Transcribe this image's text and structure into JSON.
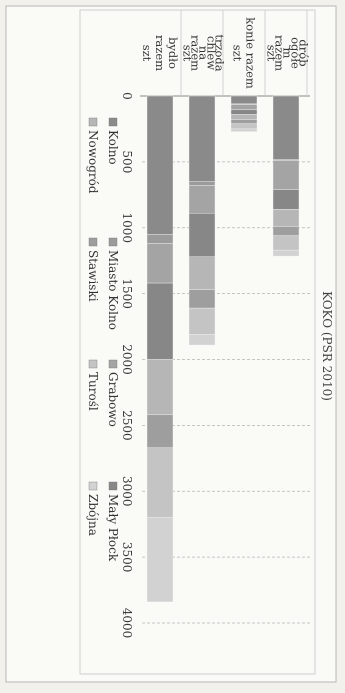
{
  "chart_data": {
    "type": "bar",
    "orientation": "horizontal",
    "stacked": true,
    "title": "KOKO (PSR 2010)",
    "ylim": [
      0,
      4000
    ],
    "ticks": [
      0,
      500,
      1000,
      1500,
      2000,
      2500,
      3000,
      3500,
      4000
    ],
    "grid": true,
    "legend_position": "bottom",
    "categories": [
      {
        "lines": [
          "drób",
          "ogółe",
          "m",
          "razem",
          "szt"
        ]
      },
      {
        "lines": [
          "konie razem",
          "szt"
        ]
      },
      {
        "lines": [
          "trzoda",
          "chlew",
          "na",
          "razem",
          "szt"
        ]
      },
      {
        "lines": [
          "bydło",
          "razem",
          "szt"
        ]
      }
    ],
    "series": [
      {
        "name": "Kolno",
        "color": "#8a8a8a",
        "values": [
          480,
          60,
          650,
          1050
        ]
      },
      {
        "name": "Miasto Kolno",
        "color": "#9b9b9b",
        "values": [
          10,
          5,
          30,
          70
        ]
      },
      {
        "name": "Grabowo",
        "color": "#a4a4a4",
        "values": [
          220,
          40,
          210,
          300
        ]
      },
      {
        "name": "Mały Płock",
        "color": "#878787",
        "values": [
          150,
          35,
          330,
          580
        ]
      },
      {
        "name": "Nowogród",
        "color": "#b6b6b6",
        "values": [
          130,
          40,
          250,
          420
        ]
      },
      {
        "name": "Stawiski",
        "color": "#9e9e9e",
        "values": [
          70,
          30,
          140,
          250
        ]
      },
      {
        "name": "Turośl",
        "color": "#c4c4c4",
        "values": [
          110,
          40,
          200,
          530
        ]
      },
      {
        "name": "Zbójna",
        "color": "#d2d2d2",
        "values": [
          45,
          20,
          80,
          640
        ]
      }
    ]
  }
}
